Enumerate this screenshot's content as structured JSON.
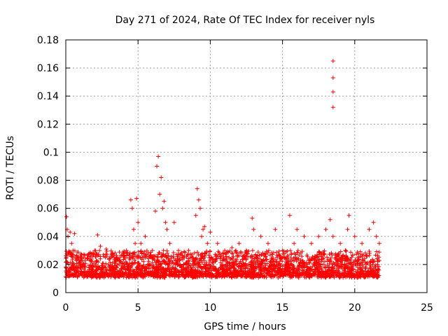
{
  "chart_data": {
    "type": "scatter",
    "title": "Day 271 of 2024, Rate Of TEC Index for receiver nyls",
    "xlabel": "GPS time / hours",
    "ylabel": "ROTI / TECUs",
    "xlim": [
      0,
      25
    ],
    "ylim": [
      0,
      0.18
    ],
    "xticks": [
      0,
      5,
      10,
      15,
      20,
      25
    ],
    "yticks": [
      0,
      0.02,
      0.04,
      0.06,
      0.08,
      0.1,
      0.12,
      0.14,
      0.16,
      0.18
    ],
    "xtick_labels": [
      "0",
      "5",
      "10",
      "15",
      "20",
      "25"
    ],
    "ytick_labels": [
      "0",
      "0.02",
      "0.04",
      "0.06",
      "0.08",
      "0.1",
      "0.12",
      "0.14",
      "0.16",
      "0.18"
    ],
    "grid": true,
    "marker": "+",
    "marker_color": "#ff0000",
    "series": [
      {
        "name": "ROTI",
        "x": [
          0.05,
          0.1,
          0.15,
          0.2,
          0.3,
          0.4,
          0.5,
          0.6,
          0.8,
          1.0,
          1.2,
          1.5,
          1.8,
          2.0,
          2.2,
          2.4,
          2.6,
          2.8,
          3.0,
          3.2,
          3.5,
          3.8,
          4.0,
          4.2,
          4.5,
          4.6,
          4.7,
          4.8,
          4.9,
          5.0,
          5.2,
          5.5,
          5.8,
          6.0,
          6.2,
          6.3,
          6.4,
          6.5,
          6.6,
          6.7,
          6.8,
          6.9,
          7.0,
          7.2,
          7.5,
          7.8,
          8.0,
          8.5,
          9.0,
          9.1,
          9.2,
          9.3,
          9.4,
          9.5,
          9.6,
          9.8,
          10.0,
          10.5,
          11.0,
          11.5,
          12.0,
          12.5,
          12.9,
          13.0,
          13.5,
          14.0,
          14.5,
          15.0,
          15.5,
          15.8,
          16.0,
          16.5,
          17.0,
          17.5,
          18.0,
          18.3,
          18.5,
          18.5,
          18.5,
          18.5,
          18.5,
          19.0,
          19.5,
          19.6,
          20.0,
          20.5,
          21.0,
          21.3,
          21.5,
          21.7
        ],
        "y": [
          0.054,
          0.045,
          0.04,
          0.02,
          0.043,
          0.035,
          0.03,
          0.042,
          0.025,
          0.018,
          0.02,
          0.015,
          0.022,
          0.03,
          0.041,
          0.033,
          0.027,
          0.031,
          0.024,
          0.028,
          0.025,
          0.022,
          0.026,
          0.03,
          0.066,
          0.06,
          0.045,
          0.035,
          0.067,
          0.05,
          0.035,
          0.04,
          0.02,
          0.03,
          0.058,
          0.09,
          0.097,
          0.07,
          0.082,
          0.06,
          0.065,
          0.05,
          0.045,
          0.035,
          0.05,
          0.03,
          0.025,
          0.03,
          0.055,
          0.074,
          0.066,
          0.06,
          0.04,
          0.045,
          0.047,
          0.035,
          0.043,
          0.035,
          0.03,
          0.032,
          0.035,
          0.03,
          0.053,
          0.045,
          0.04,
          0.035,
          0.045,
          0.03,
          0.055,
          0.035,
          0.045,
          0.04,
          0.035,
          0.04,
          0.045,
          0.052,
          0.132,
          0.143,
          0.153,
          0.165,
          0.04,
          0.035,
          0.045,
          0.055,
          0.04,
          0.035,
          0.045,
          0.05,
          0.04,
          0.035
        ],
        "baseline": {
          "x_start": 0,
          "x_end": 21.7,
          "y_min": 0.004,
          "y_max": 0.03
        }
      }
    ]
  }
}
